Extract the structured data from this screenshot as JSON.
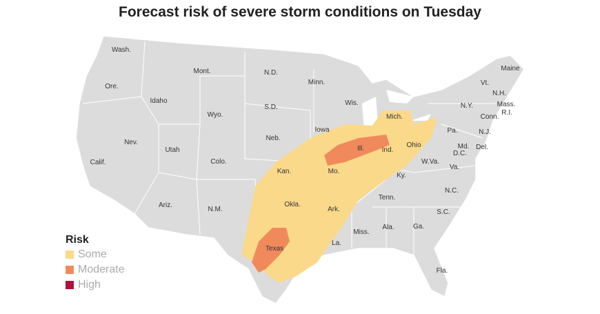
{
  "title": "Forecast risk of severe storm conditions on Tuesday",
  "states": [
    "Wash.",
    "Mont.",
    "N.D.",
    "Minn.",
    "Maine",
    "Ore.",
    "Idaho",
    "Wyo.",
    "S.D.",
    "Wis.",
    "Mich.",
    "Vt.",
    "N.H.",
    "N.Y.",
    "Mass.",
    "Conn.",
    "R.I.",
    "Iowa",
    "Neb.",
    "Nev.",
    "Utah",
    "Calif.",
    "Colo.",
    "Ill.",
    "Ind.",
    "Ohio",
    "Pa.",
    "N.J.",
    "Md.",
    "Del.",
    "D.C.",
    "Kan.",
    "Mo.",
    "W.Va.",
    "Va.",
    "Ky.",
    "Okla.",
    "Ark.",
    "Tenn.",
    "N.C.",
    "Ariz.",
    "N.M.",
    "S.C.",
    "Ala.",
    "Ga.",
    "Miss.",
    "Texas",
    "La.",
    "Fla."
  ],
  "legend": {
    "title": "Risk",
    "items": [
      {
        "name": "Some",
        "color": "#fbd98a"
      },
      {
        "name": "Moderate",
        "color": "#f08a5d"
      },
      {
        "name": "High",
        "color": "#b0103a"
      }
    ]
  }
}
